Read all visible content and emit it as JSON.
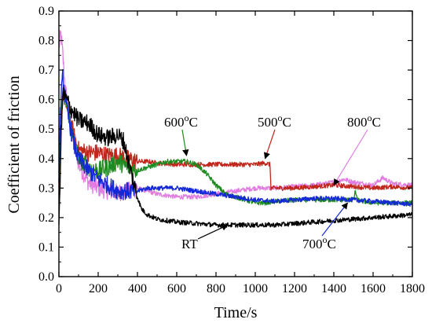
{
  "chart_data": {
    "type": "line",
    "title": "",
    "xlabel": "Time/s",
    "ylabel": "Coefficient of friction",
    "xlim": [
      0,
      1800
    ],
    "ylim": [
      0,
      0.9
    ],
    "xticks": [
      0,
      200,
      400,
      600,
      800,
      1000,
      1200,
      1400,
      1600,
      1800
    ],
    "yticks": [
      0.0,
      0.1,
      0.2,
      0.3,
      0.4,
      0.5,
      0.6,
      0.7,
      0.8,
      0.9
    ],
    "ytick_labels": [
      "0.0",
      "0.1",
      "0.2",
      "0.3",
      "0.4",
      "0.5",
      "0.6",
      "0.7",
      "0.8",
      "0.9"
    ],
    "grid": false,
    "legend": "none",
    "series": [
      {
        "name": "RT",
        "color": "#000000",
        "x": [
          0,
          10,
          20,
          40,
          60,
          80,
          100,
          150,
          200,
          250,
          300,
          330,
          350,
          380,
          400,
          420,
          450,
          500,
          600,
          700,
          800,
          900,
          1000,
          1100,
          1200,
          1300,
          1400,
          1500,
          1600,
          1700,
          1800
        ],
        "y": [
          0.15,
          0.45,
          0.62,
          0.6,
          0.57,
          0.55,
          0.53,
          0.52,
          0.48,
          0.47,
          0.48,
          0.46,
          0.4,
          0.32,
          0.27,
          0.23,
          0.21,
          0.195,
          0.185,
          0.18,
          0.175,
          0.175,
          0.175,
          0.175,
          0.18,
          0.185,
          0.19,
          0.195,
          0.2,
          0.205,
          0.21
        ]
      },
      {
        "name": "500°C",
        "color": "#c0261b",
        "x": [
          0,
          10,
          20,
          40,
          60,
          80,
          100,
          150,
          200,
          250,
          300,
          350,
          400,
          450,
          500,
          600,
          700,
          800,
          900,
          1000,
          1050,
          1075,
          1080,
          1100,
          1200,
          1300,
          1400,
          1500,
          1600,
          1700,
          1800
        ],
        "y": [
          0.25,
          0.55,
          0.62,
          0.58,
          0.52,
          0.47,
          0.43,
          0.42,
          0.42,
          0.41,
          0.41,
          0.4,
          0.39,
          0.39,
          0.385,
          0.38,
          0.38,
          0.38,
          0.38,
          0.38,
          0.385,
          0.38,
          0.3,
          0.3,
          0.3,
          0.305,
          0.31,
          0.305,
          0.3,
          0.305,
          0.3
        ]
      },
      {
        "name": "600°C",
        "color": "#1f8a1f",
        "x": [
          0,
          10,
          20,
          40,
          60,
          80,
          100,
          150,
          200,
          250,
          300,
          350,
          400,
          450,
          500,
          550,
          600,
          650,
          700,
          750,
          800,
          850,
          900,
          950,
          1000,
          1050,
          1100,
          1200,
          1300,
          1400,
          1500,
          1510,
          1520,
          1550,
          1600,
          1700,
          1800
        ],
        "y": [
          0.3,
          0.55,
          0.62,
          0.58,
          0.52,
          0.45,
          0.4,
          0.37,
          0.36,
          0.37,
          0.39,
          0.37,
          0.36,
          0.37,
          0.38,
          0.39,
          0.39,
          0.39,
          0.38,
          0.35,
          0.31,
          0.28,
          0.27,
          0.26,
          0.25,
          0.25,
          0.255,
          0.26,
          0.26,
          0.26,
          0.26,
          0.29,
          0.26,
          0.255,
          0.25,
          0.25,
          0.25
        ]
      },
      {
        "name": "700°C",
        "color": "#1428d6",
        "x": [
          0,
          10,
          20,
          40,
          60,
          80,
          100,
          150,
          200,
          250,
          300,
          350,
          400,
          450,
          500,
          600,
          700,
          800,
          900,
          1000,
          1100,
          1200,
          1300,
          1400,
          1500,
          1600,
          1700,
          1800
        ],
        "y": [
          0.35,
          0.6,
          0.68,
          0.57,
          0.5,
          0.44,
          0.4,
          0.36,
          0.33,
          0.31,
          0.29,
          0.29,
          0.29,
          0.3,
          0.3,
          0.3,
          0.29,
          0.28,
          0.27,
          0.26,
          0.255,
          0.26,
          0.265,
          0.265,
          0.26,
          0.255,
          0.25,
          0.245
        ]
      },
      {
        "name": "800°C",
        "color": "#e07ee0",
        "x": [
          0,
          10,
          20,
          30,
          50,
          80,
          100,
          150,
          200,
          250,
          300,
          350,
          400,
          500,
          600,
          700,
          800,
          900,
          1000,
          1100,
          1200,
          1300,
          1400,
          1450,
          1500,
          1600,
          1650,
          1700,
          1800
        ],
        "y": [
          0.78,
          0.82,
          0.75,
          0.65,
          0.55,
          0.47,
          0.38,
          0.32,
          0.3,
          0.29,
          0.285,
          0.29,
          0.3,
          0.28,
          0.27,
          0.27,
          0.28,
          0.29,
          0.3,
          0.3,
          0.305,
          0.31,
          0.32,
          0.33,
          0.32,
          0.31,
          0.335,
          0.315,
          0.31
        ]
      }
    ],
    "annotations": [
      {
        "text": "600",
        "sup": "o",
        "suffix": "C",
        "target_x": 650,
        "target_y": 0.41
      },
      {
        "text": "500",
        "sup": "o",
        "suffix": "C",
        "target_x": 1050,
        "target_y": 0.4
      },
      {
        "text": "800",
        "sup": "o",
        "suffix": "C",
        "target_x": 1400,
        "target_y": 0.31
      },
      {
        "text": "RT",
        "sup": "",
        "suffix": "",
        "target_x": 860,
        "target_y": 0.175
      },
      {
        "text": "700",
        "sup": "o",
        "suffix": "C",
        "target_x": 1470,
        "target_y": 0.25
      }
    ]
  }
}
